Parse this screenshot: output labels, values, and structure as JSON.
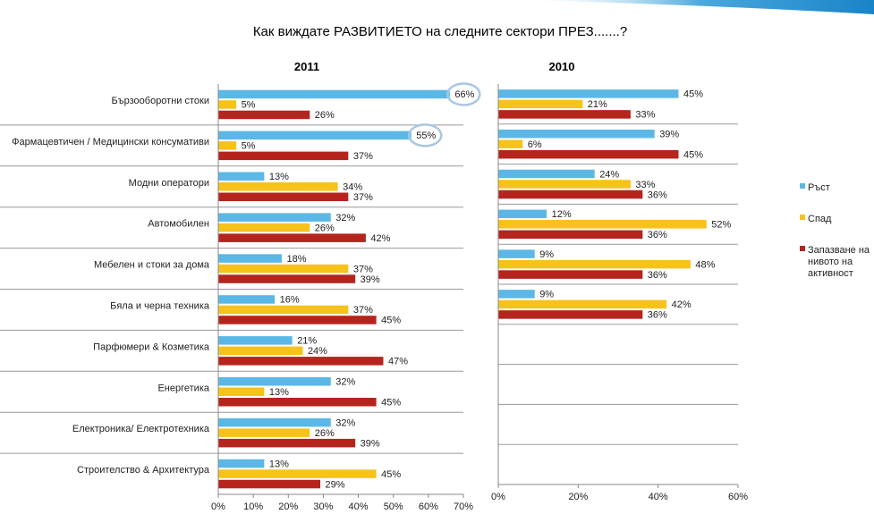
{
  "chart_data": {
    "type": "bar",
    "title": "Как виждате РАЗВИТИЕТО на следните сектори ПРЕЗ.......?",
    "colors": {
      "Ръст": "#5bb8e6",
      "Спад": "#f7c21b",
      "Запазване на нивото на активност": "#b5251d",
      "highlight": "#a9c7e2"
    },
    "legend": {
      "position": "right",
      "entries": [
        {
          "name": "Ръст",
          "lines": [
            "Ръст"
          ]
        },
        {
          "name": "Спад",
          "lines": [
            "Спад"
          ]
        },
        {
          "name": "Запазване на нивото на активност",
          "lines": [
            "Запазване на",
            "нивото на",
            "активност"
          ]
        }
      ]
    },
    "panels": [
      {
        "title": "2011",
        "categories": [
          "Бързооборотни стоки",
          "Фармацевтичен / Медицински консумативи",
          "Модни оператори",
          "Автомобилен",
          "Мебелен и стоки за дома",
          "Бяла и черна техника",
          "Парфюмери & Козметика",
          "Енергетика",
          "Електроника/ Електротехника",
          "Строителство & Архитектура"
        ],
        "xlim": [
          0,
          70
        ],
        "ticks": [
          "0%",
          "10%",
          "20%",
          "30%",
          "40%",
          "50%",
          "60%",
          "70%"
        ],
        "series": [
          {
            "name": "Ръст",
            "values": [
              66,
              55,
              13,
              32,
              18,
              16,
              21,
              32,
              32,
              13
            ]
          },
          {
            "name": "Спад",
            "values": [
              5,
              5,
              34,
              26,
              37,
              37,
              24,
              13,
              26,
              45
            ]
          },
          {
            "name": "Запазване на нивото на активност",
            "values": [
              26,
              37,
              37,
              42,
              39,
              45,
              47,
              45,
              39,
              29
            ]
          }
        ],
        "highlighted": [
          [
            0,
            0
          ],
          [
            1,
            0
          ]
        ]
      },
      {
        "title": "2010",
        "xlim": [
          0,
          60
        ],
        "ticks": [
          "0%",
          "20%",
          "40%",
          "60%"
        ],
        "series": [
          {
            "name": "Ръст",
            "values": [
              45,
              39,
              24,
              12,
              9,
              9,
              null,
              null,
              null,
              null
            ]
          },
          {
            "name": "Спад",
            "values": [
              21,
              6,
              33,
              52,
              48,
              42,
              null,
              null,
              null,
              null
            ]
          },
          {
            "name": "Запазване на нивото на активност",
            "values": [
              33,
              45,
              36,
              36,
              36,
              36,
              null,
              null,
              null,
              null
            ]
          }
        ]
      }
    ]
  }
}
